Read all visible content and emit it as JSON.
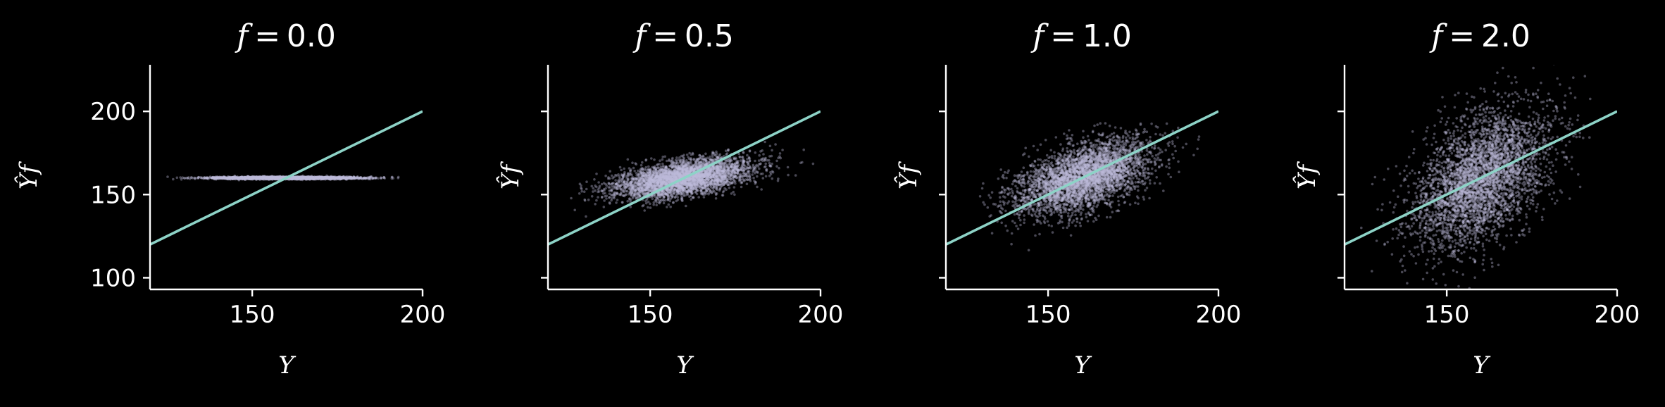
{
  "chart_data": [
    {
      "type": "scatter",
      "title": "f = 0.0",
      "title_var": "f",
      "title_value": "0.0",
      "xlabel": "Y",
      "ylabel": "Ŷf",
      "xlim": [
        120,
        200
      ],
      "ylim": [
        93,
        228
      ],
      "xticks": [
        150,
        200
      ],
      "yticks": [
        100,
        150,
        200
      ],
      "ytick_labels_shown": true,
      "reference_line": {
        "slope": 1,
        "intercept": 0,
        "color": "#8dd3c7"
      },
      "point_cloud": {
        "center_x": 160,
        "center_y": 160,
        "x_sd": 10,
        "y_sd": 0.35,
        "x_min": 125,
        "x_max": 193,
        "color": "#bebada"
      }
    },
    {
      "type": "scatter",
      "title": "f = 0.5",
      "title_var": "f",
      "title_value": "0.5",
      "xlabel": "Y",
      "ylabel": "Ŷf",
      "xlim": [
        120,
        200
      ],
      "ylim": [
        93,
        228
      ],
      "xticks": [
        150,
        200
      ],
      "yticks": [
        100,
        150,
        200
      ],
      "ytick_labels_shown": false,
      "reference_line": {
        "slope": 1,
        "intercept": 0,
        "color": "#8dd3c7"
      },
      "point_cloud": {
        "center_x": 160,
        "center_y": 160,
        "x_sd": 10,
        "y_sd": 6,
        "corr": 0.5,
        "color": "#bebada"
      }
    },
    {
      "type": "scatter",
      "title": "f = 1.0",
      "title_var": "f",
      "title_value": "1.0",
      "xlabel": "Y",
      "ylabel": "Ŷf",
      "xlim": [
        120,
        200
      ],
      "ylim": [
        93,
        228
      ],
      "xticks": [
        150,
        200
      ],
      "yticks": [
        100,
        150,
        200
      ],
      "ytick_labels_shown": false,
      "reference_line": {
        "slope": 1,
        "intercept": 0,
        "color": "#8dd3c7"
      },
      "point_cloud": {
        "center_x": 160,
        "center_y": 160,
        "x_sd": 10,
        "y_sd": 11,
        "corr": 0.5,
        "color": "#bebada"
      }
    },
    {
      "type": "scatter",
      "title": "f = 2.0",
      "title_var": "f",
      "title_value": "2.0",
      "xlabel": "Y",
      "ylabel": "Ŷf",
      "xlim": [
        120,
        200
      ],
      "ylim": [
        93,
        228
      ],
      "xticks": [
        150,
        200
      ],
      "yticks": [
        100,
        150,
        200
      ],
      "ytick_labels_shown": false,
      "reference_line": {
        "slope": 1,
        "intercept": 0,
        "color": "#8dd3c7"
      },
      "point_cloud": {
        "center_x": 160,
        "center_y": 160,
        "x_sd": 10,
        "y_sd": 21,
        "corr": 0.45,
        "color": "#bebada"
      }
    }
  ],
  "colors": {
    "background": "#000000",
    "axes": "#ffffff",
    "reference_line": "#8dd3c7",
    "points": "#bebada"
  }
}
